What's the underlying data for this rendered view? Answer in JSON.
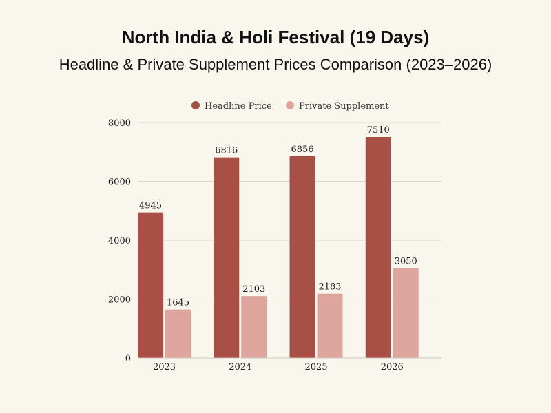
{
  "chart_data": {
    "type": "bar",
    "title": "North India & Holi Festival (19 Days)",
    "subtitle": "Headline & Private Supplement Prices Comparison (2023–2026)",
    "categories": [
      "2023",
      "2024",
      "2025",
      "2026"
    ],
    "series": [
      {
        "name": "Headline Price",
        "color": "#a84f46",
        "values": [
          4945,
          6816,
          6856,
          7510
        ]
      },
      {
        "name": "Private Supplement",
        "color": "#dea59f",
        "values": [
          1645,
          2103,
          2183,
          3050
        ]
      }
    ],
    "ylim": [
      0,
      8000
    ],
    "yticks": [
      0,
      2000,
      4000,
      6000,
      8000
    ],
    "grid": true,
    "legend_position": "top-center",
    "xlabel": "",
    "ylabel": ""
  }
}
